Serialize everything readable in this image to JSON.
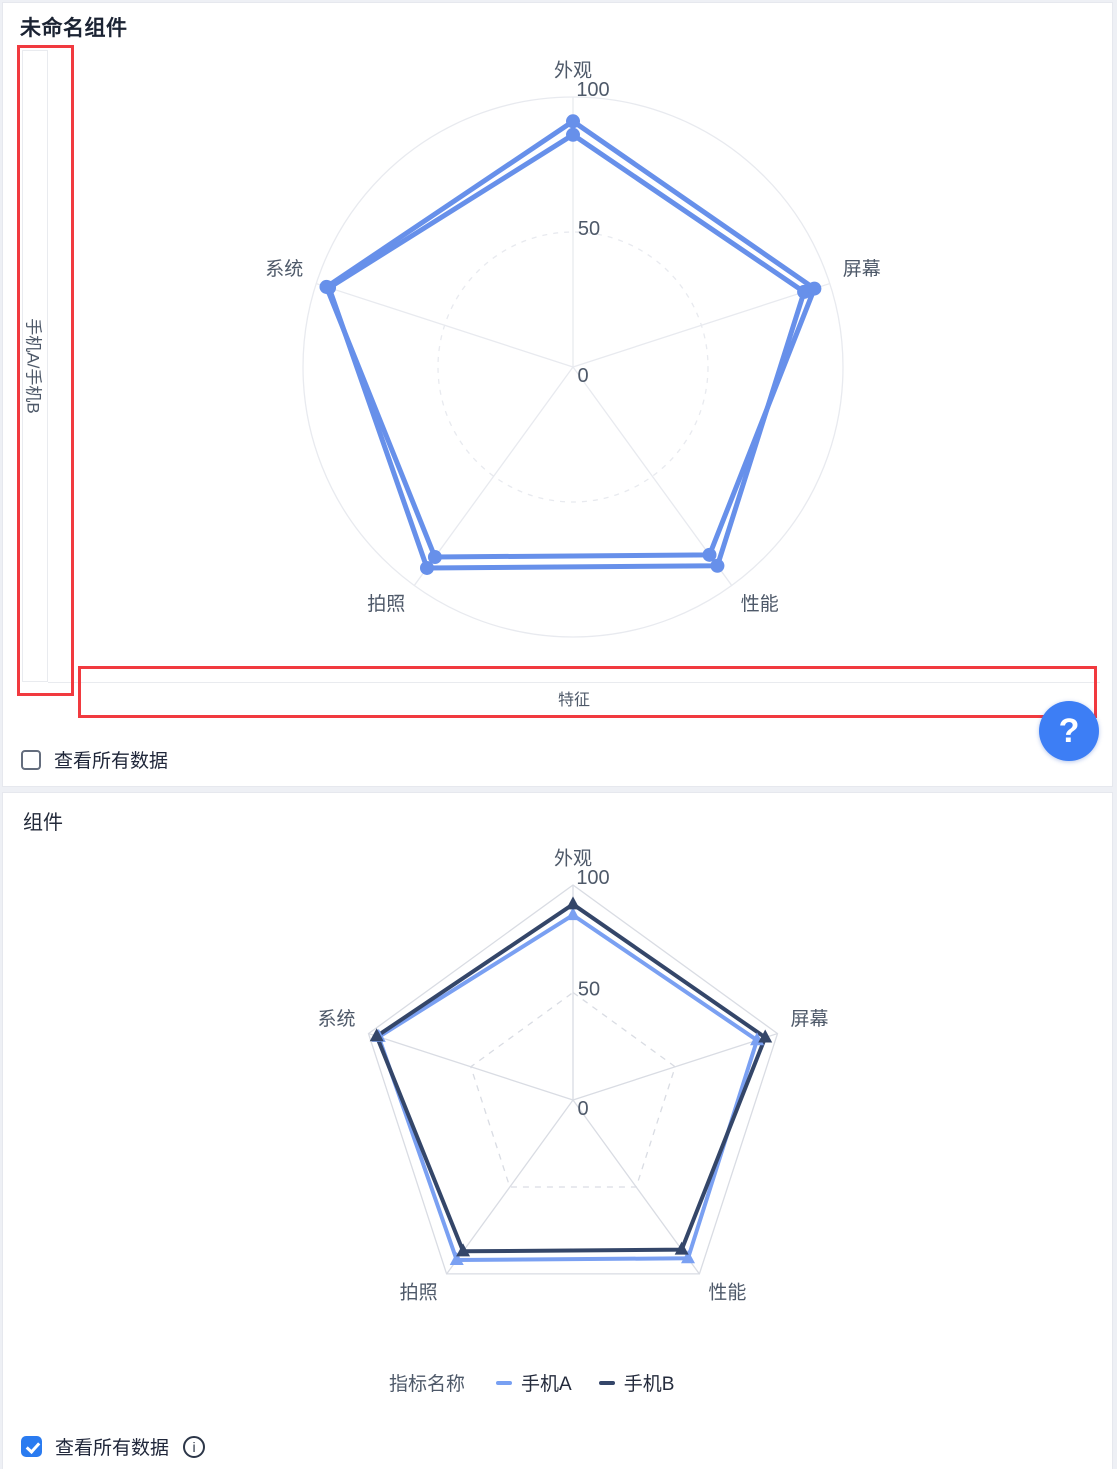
{
  "app": {
    "background": "#eef0f5",
    "card_border": "#e6e8ee",
    "annotation_color": "#f13a3f"
  },
  "editor_section": {
    "title": "未命名组件",
    "row_well_label": "手机A/手机B",
    "column_well_label": "特征",
    "view_all_checkbox": {
      "label": "查看所有数据",
      "checked": false
    },
    "help_button": {
      "glyph": "?",
      "color": "#3d7ef5"
    }
  },
  "preview_section": {
    "title": "组件",
    "legend": {
      "title": "指标名称",
      "items": [
        {
          "label": "手机A",
          "color": "#78a0f2"
        },
        {
          "label": "手机B",
          "color": "#344669"
        }
      ]
    },
    "view_all_checkbox": {
      "label": "查看所有数据",
      "checked": true
    },
    "info_icon_glyph": "i"
  },
  "chart_data": [
    {
      "type": "radar",
      "grid_shape": "circle",
      "indicators": [
        "外观",
        "屏幕",
        "性能",
        "拍照",
        "系统"
      ],
      "max": 100,
      "ticks": [
        0,
        50,
        100
      ],
      "legend": false,
      "series": [
        {
          "name": "手机A",
          "values": [
            86,
            90,
            91,
            92,
            95
          ],
          "color": "#6790ea",
          "marker": "circle"
        },
        {
          "name": "手机B",
          "values": [
            91,
            94,
            86,
            87,
            96
          ],
          "color": "#6790ea",
          "marker": "circle"
        }
      ]
    },
    {
      "type": "radar",
      "grid_shape": "polygon",
      "indicators": [
        "外观",
        "屏幕",
        "性能",
        "拍照",
        "系统"
      ],
      "max": 100,
      "ticks": [
        0,
        50,
        100
      ],
      "legend": true,
      "legend_position": "bottom",
      "legend_title": "指标名称",
      "series": [
        {
          "name": "手机A",
          "values": [
            86,
            90,
            91,
            92,
            95
          ],
          "color": "#7aa0f2",
          "marker": "triangle"
        },
        {
          "name": "手机B",
          "values": [
            91,
            94,
            86,
            87,
            96
          ],
          "color": "#344669",
          "marker": "triangle"
        }
      ]
    }
  ]
}
